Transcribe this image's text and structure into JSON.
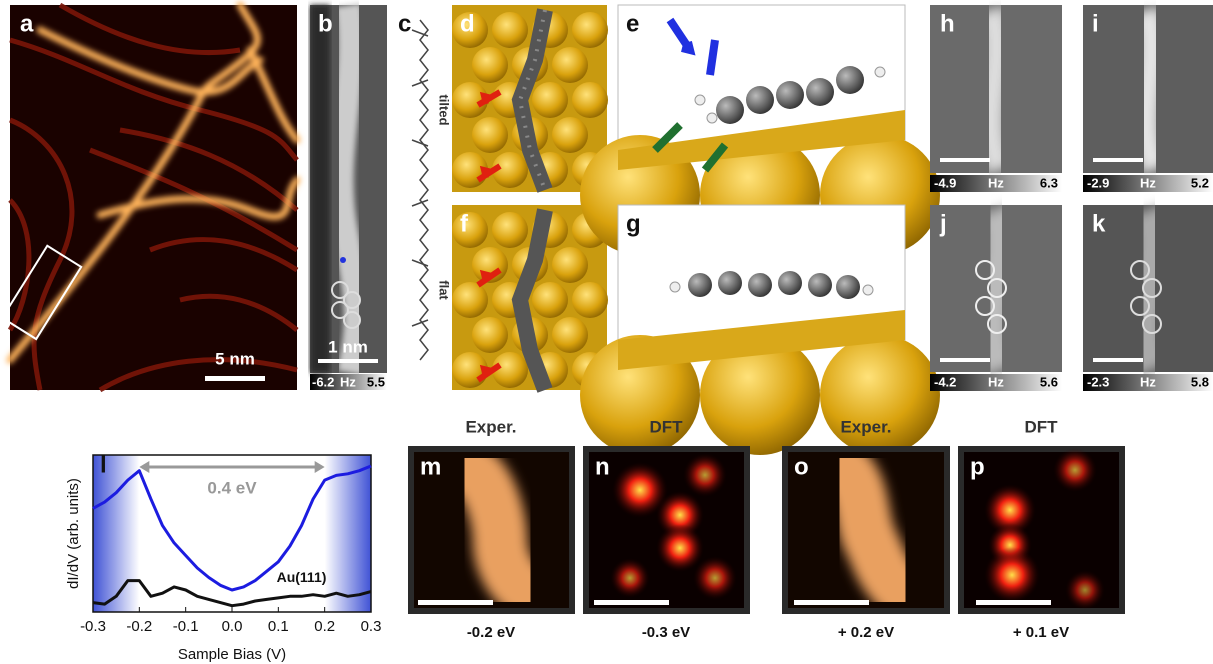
{
  "panels": {
    "a": {
      "label": "a",
      "scale_bar": "5 nm"
    },
    "b": {
      "label": "b",
      "scale_bar": "1 nm",
      "colorbar": {
        "min": -6.2,
        "unit": "Hz",
        "max": 5.5
      }
    },
    "c": {
      "label": "c",
      "upper": "tilted",
      "lower": "flat"
    },
    "d": {
      "label": "d"
    },
    "e": {
      "label": "e"
    },
    "f": {
      "label": "f"
    },
    "g": {
      "label": "g"
    },
    "h": {
      "label": "h",
      "colorbar": {
        "min": -4.9,
        "unit": "Hz",
        "max": 6.3
      }
    },
    "i": {
      "label": "i",
      "colorbar": {
        "min": -2.9,
        "unit": "Hz",
        "max": 5.2
      }
    },
    "j": {
      "label": "j",
      "colorbar": {
        "min": -4.2,
        "unit": "Hz",
        "max": 5.6
      }
    },
    "k": {
      "label": "k",
      "colorbar": {
        "min": -2.3,
        "unit": "Hz",
        "max": 5.8
      }
    },
    "l": {
      "label": "l"
    },
    "m": {
      "label": "m",
      "heading": "Exper.",
      "caption": "-0.2 eV"
    },
    "n": {
      "label": "n",
      "heading": "DFT",
      "caption": "-0.3 eV"
    },
    "o": {
      "label": "o",
      "heading": "Exper.",
      "caption": "+ 0.2 eV"
    },
    "p": {
      "label": "p",
      "heading": "DFT",
      "caption": "+ 0.1 eV"
    }
  },
  "chart_data": {
    "type": "line",
    "xlabel": "Sample Bias (V)",
    "ylabel": "dI/dV (arb. units)",
    "annotation": "0.4 eV",
    "x": [
      -0.3,
      -0.275,
      -0.25,
      -0.225,
      -0.2,
      -0.175,
      -0.15,
      -0.125,
      -0.1,
      -0.075,
      -0.05,
      -0.025,
      0,
      0.025,
      0.05,
      0.075,
      0.1,
      0.125,
      0.15,
      0.175,
      0.2,
      0.225,
      0.25,
      0.275,
      0.3
    ],
    "series": [
      {
        "color": "#1c1ce0",
        "values": [
          0.66,
          0.7,
          0.76,
          0.84,
          0.9,
          0.72,
          0.55,
          0.44,
          0.36,
          0.28,
          0.22,
          0.17,
          0.14,
          0.16,
          0.2,
          0.26,
          0.32,
          0.42,
          0.55,
          0.72,
          0.84,
          0.87,
          0.88,
          0.9,
          0.93
        ]
      },
      {
        "name": "Au(111)",
        "color": "#111111",
        "values": [
          0.06,
          0.05,
          0.1,
          0.2,
          0.2,
          0.1,
          0.12,
          0.16,
          0.14,
          0.1,
          0.08,
          0.06,
          0.04,
          0.05,
          0.07,
          0.08,
          0.09,
          0.1,
          0.1,
          0.11,
          0.1,
          0.12,
          0.1,
          0.11,
          0.13
        ]
      }
    ],
    "xlim": [
      -0.3,
      0.3
    ],
    "ylim": [
      0,
      1
    ],
    "xticks": [
      -0.3,
      -0.2,
      -0.1,
      {
        "value": 0,
        "label": "0.0"
      },
      0.1,
      0.2,
      0.3
    ]
  }
}
